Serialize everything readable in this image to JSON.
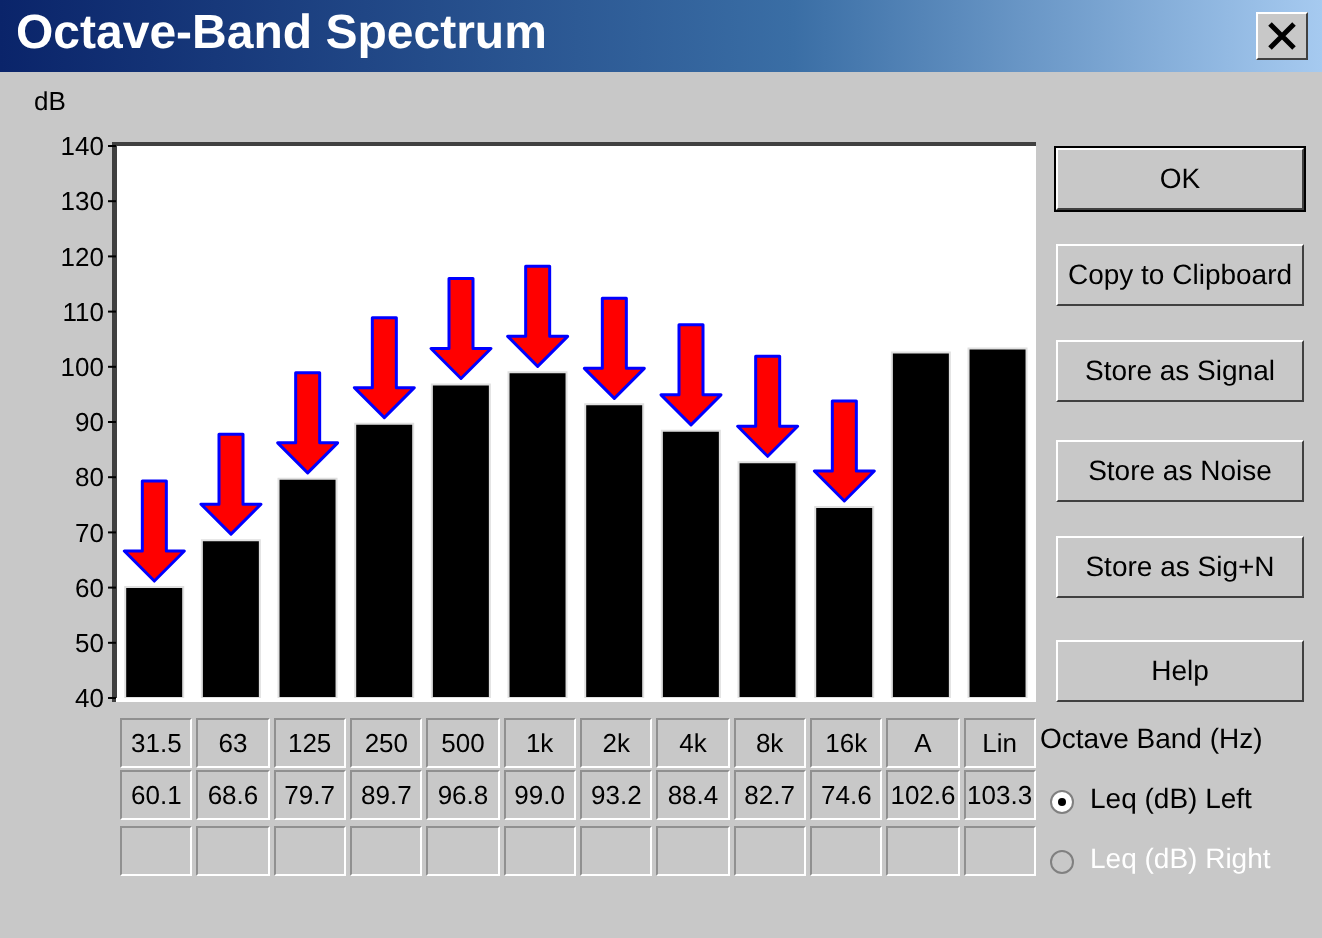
{
  "chart_data": {
    "type": "bar",
    "title": "Octave-Band Spectrum",
    "ylabel": "dB",
    "xlabel": "Octave Band (Hz)",
    "categories": [
      "31.5",
      "63",
      "125",
      "250",
      "500",
      "1k",
      "2k",
      "4k",
      "8k",
      "16k",
      "A",
      "Lin"
    ],
    "values": [
      60.1,
      68.6,
      79.7,
      89.7,
      96.8,
      99.0,
      93.2,
      88.4,
      82.7,
      74.6,
      102.6,
      103.3
    ],
    "value_labels": [
      "60.1",
      "68.6",
      "79.7",
      "89.7",
      "96.8",
      "99.0",
      "93.2",
      "88.4",
      "82.7",
      "74.6",
      "102.6",
      "103.3"
    ],
    "color": "#000000",
    "ylim": [
      40,
      140
    ],
    "yticks": [
      40,
      50,
      60,
      70,
      80,
      90,
      100,
      110,
      120,
      130,
      140
    ],
    "grid": false,
    "legend": false,
    "annotations": [
      "OK",
      "Copy to Clipboard",
      "Store as Signal",
      "Store as Noise",
      "Store as Sig+N",
      "Help",
      "Leq (dB) Left",
      "Leq (dB) Right"
    ]
  }
}
